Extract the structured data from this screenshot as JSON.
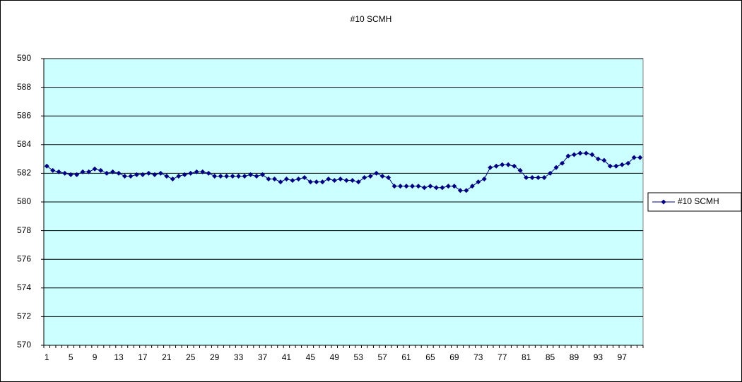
{
  "chart_data": {
    "type": "line",
    "title": "#10 SCMH",
    "categories": [
      1,
      null,
      null,
      null,
      5,
      null,
      null,
      null,
      9,
      null,
      null,
      null,
      13,
      null,
      null,
      null,
      17,
      null,
      null,
      null,
      21,
      null,
      null,
      null,
      25,
      null,
      null,
      null,
      29,
      null,
      null,
      null,
      33,
      null,
      null,
      null,
      37,
      null,
      null,
      null,
      41,
      null,
      null,
      null,
      45,
      null,
      null,
      null,
      49,
      null,
      null,
      null,
      53,
      null,
      null,
      null,
      57,
      null,
      null,
      null,
      61,
      null,
      null,
      null,
      65,
      null,
      null,
      null,
      69,
      null,
      null,
      null,
      73,
      null,
      null,
      null,
      77,
      null,
      null,
      null,
      81,
      null,
      null,
      null,
      85,
      null,
      null,
      null,
      89,
      null,
      null,
      null,
      93,
      null,
      null,
      null,
      97,
      null,
      null,
      null
    ],
    "series": [
      {
        "name": "#10 SCMH",
        "color": "#000080",
        "values": [
          582.5,
          582.2,
          582.1,
          582.0,
          581.9,
          581.9,
          582.1,
          582.1,
          582.3,
          582.2,
          582.0,
          582.1,
          582.0,
          581.8,
          581.8,
          581.9,
          581.9,
          582.0,
          581.9,
          582.0,
          581.8,
          581.6,
          581.8,
          581.9,
          582.0,
          582.1,
          582.1,
          582.0,
          581.8,
          581.8,
          581.8,
          581.8,
          581.8,
          581.8,
          581.9,
          581.8,
          581.9,
          581.6,
          581.6,
          581.4,
          581.6,
          581.5,
          581.6,
          581.7,
          581.4,
          581.4,
          581.4,
          581.6,
          581.5,
          581.6,
          581.5,
          581.5,
          581.4,
          581.7,
          581.8,
          582.0,
          581.8,
          581.7,
          581.1,
          581.1,
          581.1,
          581.1,
          581.1,
          581.0,
          581.1,
          581.0,
          581.0,
          581.1,
          581.1,
          580.8,
          580.8,
          581.1,
          581.4,
          581.6,
          582.4,
          582.5,
          582.6,
          582.6,
          582.5,
          582.2,
          581.7,
          581.7,
          581.7,
          581.7,
          582.0,
          582.4,
          582.7,
          583.2,
          583.3,
          583.4,
          583.4,
          583.3,
          583.0,
          582.9,
          582.5,
          582.5,
          582.6,
          582.7,
          583.1,
          583.1
        ]
      }
    ],
    "ylim": [
      570,
      590
    ],
    "yticks": [
      570,
      572,
      574,
      576,
      578,
      580,
      582,
      584,
      586,
      588,
      590
    ],
    "grid": true,
    "plot_background": "#ccffff",
    "legend": "right"
  }
}
